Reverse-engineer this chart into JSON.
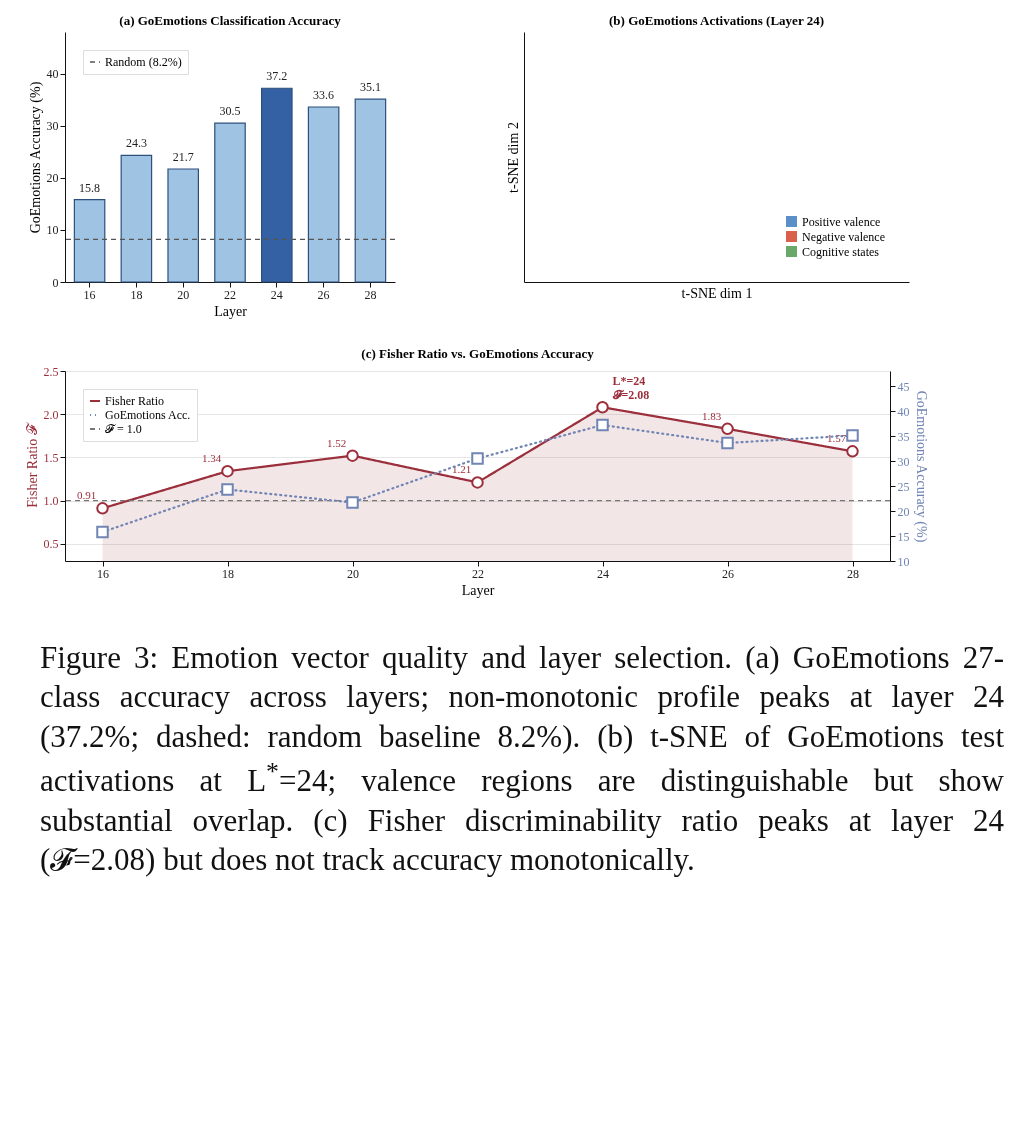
{
  "chart_data": [
    {
      "type": "bar",
      "title": "(a) GoEmotions Classification Accuracy",
      "xlabel": "Layer",
      "ylabel": "GoEmotions Accuracy (%)",
      "categories": [
        "16",
        "18",
        "20",
        "22",
        "24",
        "26",
        "28"
      ],
      "values": [
        15.8,
        24.3,
        21.7,
        30.5,
        37.2,
        33.6,
        35.1
      ],
      "colors": [
        "#9fc3e2",
        "#9fc3e2",
        "#9fc3e2",
        "#9fc3e2",
        "#3461a3",
        "#9fc3e2",
        "#9fc3e2"
      ],
      "ylim": [
        0,
        48
      ],
      "yticks": [
        0,
        10,
        20,
        30,
        40
      ],
      "data_labels": true,
      "grid": false,
      "legend": "top left",
      "ref_lines": [
        {
          "axis": "y",
          "value": 8.2,
          "label": "Random (8.2%)",
          "color": "#555555",
          "line_style": "dashed"
        }
      ]
    },
    {
      "type": "other",
      "title": "(b) GoEmotions Activations (Layer 24)",
      "xlabel": "t-SNE dim 1",
      "ylabel": "t-SNE dim 2",
      "legend": "bottom right",
      "series": [
        {
          "name": "Positive valence",
          "color": "#5b8fc7"
        },
        {
          "name": "Negative valence",
          "color": "#d9604c"
        },
        {
          "name": "Cognitive states",
          "color": "#6aa86a"
        }
      ]
    },
    {
      "type": "line",
      "title": "(c) Fisher Ratio vs. GoEmotions Accuracy",
      "xlabel": "Layer",
      "ylabel": "Fisher Ratio 𝓕",
      "y2label": "GoEmotions Accuracy (%)",
      "categories": [
        "16",
        "18",
        "20",
        "22",
        "24",
        "26",
        "28"
      ],
      "series": [
        {
          "name": "Fisher Ratio",
          "type": "area",
          "color": "#9b2f3c",
          "marker": "circle",
          "line_style": "solid",
          "values": [
            0.91,
            1.34,
            1.52,
            1.21,
            2.08,
            1.83,
            1.57
          ],
          "value_labels": [
            "0.91",
            "1.34",
            "1.52",
            "1.21",
            null,
            "1.83",
            "1.57"
          ]
        },
        {
          "name": "GoEmotions Acc.",
          "type": "line",
          "axis": "y2",
          "color": "#7085b3",
          "marker": "square",
          "line_style": "dotted",
          "values": [
            15.8,
            24.3,
            21.7,
            30.5,
            37.2,
            33.6,
            35.1
          ]
        }
      ],
      "ylim": [
        0.3,
        2.5
      ],
      "yticks": [
        {
          "value": 0.5,
          "label": "0.5"
        },
        {
          "value": 1,
          "label": "1.0"
        },
        {
          "value": 1.5,
          "label": "1.5"
        },
        {
          "value": 2,
          "label": "2.0"
        },
        {
          "value": 2.5,
          "label": "2.5"
        }
      ],
      "y2lim": [
        10,
        48
      ],
      "y2ticks": [
        10,
        15,
        20,
        25,
        30,
        35,
        40,
        45
      ],
      "grid": "y",
      "legend": "top left",
      "ref_lines": [
        {
          "axis": "y",
          "value": 1.0,
          "label": "𝓕 = 1.0",
          "color": "#777777",
          "line_style": "dashed"
        }
      ],
      "annotations": [
        {
          "text": "L*=24\n𝓕=2.08",
          "x": "24",
          "y": 2.08
        },
        "Figure 3: Emotion vector quality and layer selection. (a) GoEmotions 27-class accuracy across layers; non-monotonic profile peaks at layer 24 (37.2%; dashed: random baseline 8.2%). (b) t-SNE of GoEmotions test activations at L$^{*}$=24; valence regions are distinguishable but show substantial overlap. (c) Fisher discriminability ratio peaks at layer 24 (𝓕=2.08) but does not track accuracy monotonically."
      ]
    }
  ]
}
